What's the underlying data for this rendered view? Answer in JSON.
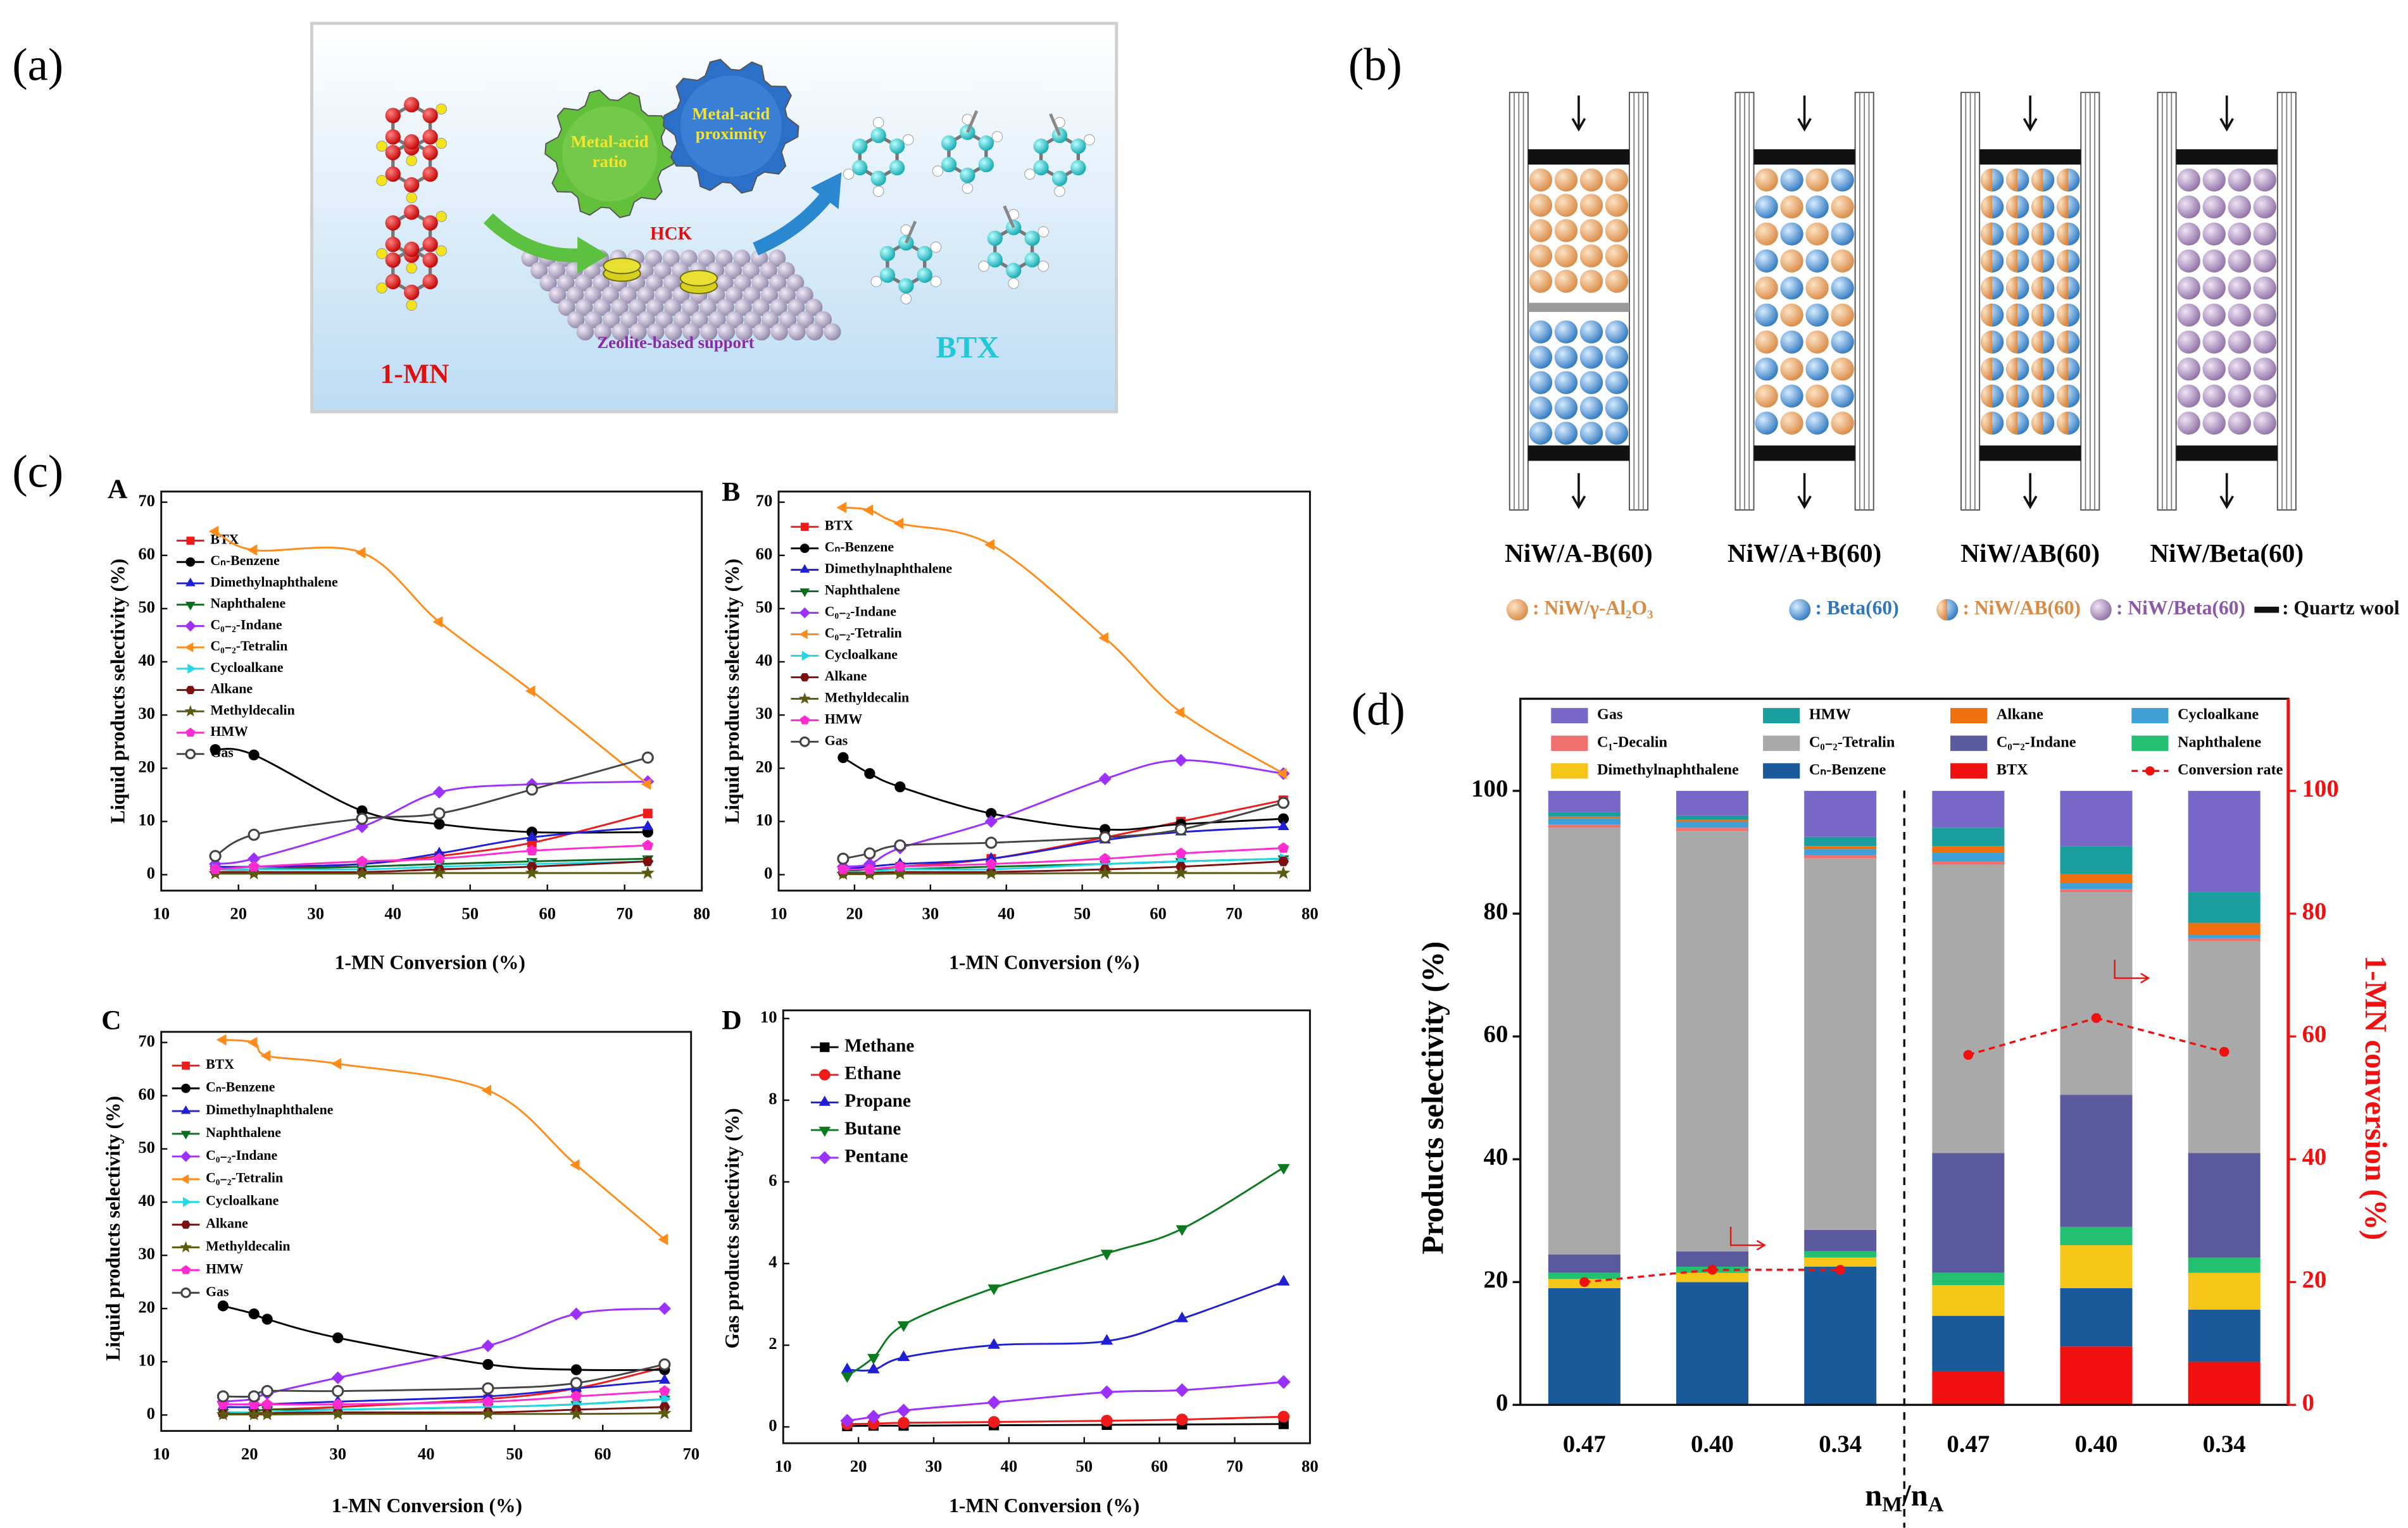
{
  "panel_labels": [
    "(a)",
    "(b)",
    "(c)",
    "(d)"
  ],
  "diagram_a": {
    "reactant": "1-MN",
    "product": "BTX",
    "gear_1": [
      "Metal-acid",
      "ratio"
    ],
    "gear_2": [
      "Metal-acid",
      "proximity"
    ],
    "reaction": "HCK",
    "support": "Zeolite-based support"
  },
  "diagram_b": {
    "columns": [
      "NiW/A-B(60)",
      "NiW/A+B(60)",
      "NiW/AB(60)",
      "NiW/Beta(60)"
    ],
    "legend": [
      ": NiW/γ-Al₂O₃",
      ": Beta(60)",
      ": NiW/AB(60)",
      ": NiW/Beta(60)",
      ": Quartz wool"
    ]
  },
  "chart_data": [
    {
      "type": "line",
      "panel": "A",
      "x_label": "1-MN Conversion (%)",
      "y_label": "Liquid products selectivity (%)",
      "xlim": [
        10,
        80
      ],
      "xticks": [
        10,
        20,
        30,
        40,
        50,
        60,
        70,
        80
      ],
      "ylim": [
        -3,
        72
      ],
      "yticks": [
        0,
        10,
        20,
        30,
        40,
        50,
        60,
        70
      ],
      "x": [
        17,
        22,
        36,
        46,
        58,
        73
      ],
      "series": [
        {
          "name": "BTX",
          "color": "#f01a1a",
          "marker": "square",
          "values": [
            1,
            1,
            2,
            3.5,
            6,
            11.5
          ]
        },
        {
          "name": "Cₙ-Benzene",
          "color": "#000000",
          "marker": "circle",
          "values": [
            23.5,
            22.5,
            12,
            9.5,
            8,
            8
          ]
        },
        {
          "name": "Dimethylnaphthalene",
          "color": "#1f1fd6",
          "marker": "triangle",
          "values": [
            1.5,
            1.5,
            2,
            4,
            7,
            9
          ]
        },
        {
          "name": "Naphthalene",
          "color": "#0b6b1f",
          "marker": "triangle-down",
          "values": [
            1,
            1,
            1.5,
            2,
            2.5,
            3
          ]
        },
        {
          "name": "C₀₋₂-Indane",
          "color": "#9b30ff",
          "marker": "diamond",
          "values": [
            2,
            3,
            9,
            15.5,
            17,
            17.5
          ]
        },
        {
          "name": "C₀₋₂-Tetralin",
          "color": "#ff8c1a",
          "marker": "triangle-left",
          "values": [
            64.5,
            61,
            60.5,
            47.5,
            34.5,
            17
          ]
        },
        {
          "name": "Cycloalkane",
          "color": "#20d8e6",
          "marker": "triangle-right",
          "values": [
            1,
            1,
            1,
            1.5,
            2,
            2.5
          ]
        },
        {
          "name": "Alkane",
          "color": "#7a1010",
          "marker": "hexagon",
          "values": [
            0.5,
            0.5,
            0.5,
            1,
            1.5,
            2.5
          ]
        },
        {
          "name": "Methyldecalin",
          "color": "#5a5a10",
          "marker": "star",
          "values": [
            0.2,
            0.2,
            0.2,
            0.3,
            0.3,
            0.3
          ]
        },
        {
          "name": "HMW",
          "color": "#ff2bd0",
          "marker": "pentagon",
          "values": [
            1,
            1.5,
            2.5,
            3,
            4.5,
            5.5
          ]
        },
        {
          "name": "Gas",
          "color": "#444444",
          "marker": "circle-open",
          "values": [
            3.5,
            7.5,
            10.5,
            11.5,
            16,
            22
          ]
        }
      ]
    },
    {
      "type": "line",
      "panel": "B",
      "x_label": "1-MN Conversion (%)",
      "y_label": "Liquid products selectivity (%)",
      "xlim": [
        10,
        80
      ],
      "xticks": [
        10,
        20,
        30,
        40,
        50,
        60,
        70,
        80
      ],
      "ylim": [
        -3,
        72
      ],
      "yticks": [
        0,
        10,
        20,
        30,
        40,
        50,
        60,
        70
      ],
      "x": [
        18.5,
        22,
        26,
        38,
        53,
        63,
        76.5
      ],
      "series": [
        {
          "name": "BTX",
          "color": "#f01a1a",
          "marker": "square",
          "values": [
            1,
            1,
            1.5,
            3,
            7,
            10,
            14
          ]
        },
        {
          "name": "Cₙ-Benzene",
          "color": "#000000",
          "marker": "circle",
          "values": [
            22,
            19,
            16.5,
            11.5,
            8.5,
            9.5,
            10.5
          ]
        },
        {
          "name": "Dimethylnaphthalene",
          "color": "#1f1fd6",
          "marker": "triangle",
          "values": [
            1,
            1.5,
            2,
            3,
            6.5,
            8,
            9
          ]
        },
        {
          "name": "Naphthalene",
          "color": "#0b6b1f",
          "marker": "triangle-down",
          "values": [
            0.5,
            1,
            1,
            1.5,
            2,
            2.5,
            3
          ]
        },
        {
          "name": "C₀₋₂-Indane",
          "color": "#9b30ff",
          "marker": "diamond",
          "values": [
            1.5,
            2,
            5,
            10,
            18,
            21.5,
            19
          ]
        },
        {
          "name": "C₀₋₂-Tetralin",
          "color": "#ff8c1a",
          "marker": "triangle-left",
          "values": [
            69,
            68.5,
            66,
            62,
            44.5,
            30.5,
            19
          ]
        },
        {
          "name": "Cycloalkane",
          "color": "#20d8e6",
          "marker": "triangle-right",
          "values": [
            0.5,
            0.5,
            1,
            1,
            2,
            2.5,
            3
          ]
        },
        {
          "name": "Alkane",
          "color": "#7a1010",
          "marker": "hexagon",
          "values": [
            0.3,
            0.3,
            0.5,
            0.5,
            1,
            1.5,
            2.5
          ]
        },
        {
          "name": "Methyldecalin",
          "color": "#5a5a10",
          "marker": "star",
          "values": [
            0.1,
            0.1,
            0.2,
            0.2,
            0.3,
            0.3,
            0.3
          ]
        },
        {
          "name": "HMW",
          "color": "#ff2bd0",
          "marker": "pentagon",
          "values": [
            1,
            1,
            1.5,
            2,
            3,
            4,
            5
          ]
        },
        {
          "name": "Gas",
          "color": "#444444",
          "marker": "circle-open",
          "values": [
            3,
            4,
            5.5,
            6,
            7,
            8.5,
            13.5
          ]
        }
      ]
    },
    {
      "type": "line",
      "panel": "C",
      "x_label": "1-MN Conversion (%)",
      "y_label": "Liquid products selectivity (%)",
      "xlim": [
        10,
        70
      ],
      "xticks": [
        10,
        20,
        30,
        40,
        50,
        60,
        70
      ],
      "ylim": [
        -3,
        72
      ],
      "yticks": [
        0,
        10,
        20,
        30,
        40,
        50,
        60,
        70
      ],
      "x": [
        17,
        20.5,
        22,
        30,
        47,
        57,
        67
      ],
      "series": [
        {
          "name": "BTX",
          "color": "#f01a1a",
          "marker": "square",
          "values": [
            0.5,
            0.5,
            1,
            1.5,
            3,
            5,
            9
          ]
        },
        {
          "name": "Cₙ-Benzene",
          "color": "#000000",
          "marker": "circle",
          "values": [
            20.5,
            19,
            18,
            14.5,
            9.5,
            8.5,
            8.5
          ]
        },
        {
          "name": "Dimethylnaphthalene",
          "color": "#1f1fd6",
          "marker": "triangle",
          "values": [
            1.5,
            1.5,
            2,
            2.5,
            3.5,
            5,
            6.5
          ]
        },
        {
          "name": "Naphthalene",
          "color": "#0b6b1f",
          "marker": "triangle-down",
          "values": [
            0.5,
            0.5,
            1,
            1,
            1.5,
            2,
            3
          ]
        },
        {
          "name": "C₀₋₂-Indane",
          "color": "#9b30ff",
          "marker": "diamond",
          "values": [
            2.5,
            3,
            4,
            7,
            13,
            19,
            20
          ]
        },
        {
          "name": "C₀₋₂-Tetralin",
          "color": "#ff8c1a",
          "marker": "triangle-left",
          "values": [
            70.5,
            70,
            67.5,
            66,
            61,
            47,
            33
          ]
        },
        {
          "name": "Cycloalkane",
          "color": "#20d8e6",
          "marker": "triangle-right",
          "values": [
            0.5,
            0.5,
            0.5,
            1,
            1.5,
            2,
            3
          ]
        },
        {
          "name": "Alkane",
          "color": "#7a1010",
          "marker": "hexagon",
          "values": [
            0.2,
            0.2,
            0.3,
            0.5,
            0.5,
            1,
            1.5
          ]
        },
        {
          "name": "Methyldecalin",
          "color": "#5a5a10",
          "marker": "star",
          "values": [
            0.1,
            0.1,
            0.1,
            0.2,
            0.2,
            0.2,
            0.3
          ]
        },
        {
          "name": "HMW",
          "color": "#ff2bd0",
          "marker": "pentagon",
          "values": [
            2,
            2,
            2,
            2,
            2.5,
            3.5,
            4.5
          ]
        },
        {
          "name": "Gas",
          "color": "#444444",
          "marker": "circle-open",
          "values": [
            3.5,
            3.5,
            4.5,
            4.5,
            5,
            6,
            9.5
          ]
        }
      ]
    },
    {
      "type": "line",
      "panel": "D",
      "x_label": "1-MN Conversion (%)",
      "y_label": "Gas products selectivity (%)",
      "xlim": [
        10,
        80
      ],
      "xticks": [
        10,
        20,
        30,
        40,
        50,
        60,
        70,
        80
      ],
      "ylim": [
        -0.4,
        10.2
      ],
      "yticks": [
        0,
        2,
        4,
        6,
        8,
        10
      ],
      "x": [
        18.5,
        22,
        26,
        38,
        53,
        63,
        76.5
      ],
      "series": [
        {
          "name": "Methane",
          "color": "#000000",
          "marker": "square",
          "values": [
            0.02,
            0.03,
            0.03,
            0.04,
            0.05,
            0.06,
            0.07
          ]
        },
        {
          "name": "Ethane",
          "color": "#f01a1a",
          "marker": "circle",
          "values": [
            0.07,
            0.08,
            0.1,
            0.12,
            0.15,
            0.18,
            0.25
          ]
        },
        {
          "name": "Propane",
          "color": "#1f1fd6",
          "marker": "triangle",
          "values": [
            1.4,
            1.4,
            1.7,
            2,
            2.1,
            2.65,
            3.55
          ]
        },
        {
          "name": "Butane",
          "color": "#0b7a1f",
          "marker": "triangle-down",
          "values": [
            1.25,
            1.7,
            2.5,
            3.4,
            4.25,
            4.85,
            6.35
          ]
        },
        {
          "name": "Pentane",
          "color": "#9b30ff",
          "marker": "diamond",
          "values": [
            0.15,
            0.25,
            0.4,
            0.6,
            0.85,
            0.9,
            1.1
          ]
        }
      ]
    },
    {
      "type": "bar",
      "stacked": true,
      "x_label": [
        "n",
        "M",
        "/n",
        "A"
      ],
      "y_label": "Products selectivity (%)",
      "y2_label": "1-MN conversion (%)",
      "categories": [
        "0.47",
        "0.40",
        "0.34",
        "0.47",
        "0.40",
        "0.34"
      ],
      "ylim": [
        0,
        115
      ],
      "yticks": [
        0,
        20,
        40,
        60,
        80,
        100
      ],
      "y2lim": [
        0,
        115
      ],
      "y2ticks": [
        0,
        20,
        40,
        60,
        80,
        100
      ],
      "y2color": "#f01010",
      "series": [
        {
          "name": "BTX",
          "color": "#f01010",
          "values": [
            0,
            0,
            0,
            5.5,
            9.5,
            7
          ]
        },
        {
          "name": "Cₙ-Benzene",
          "color": "#1b5a9a",
          "values": [
            19,
            20,
            22.5,
            9,
            9.5,
            8.5
          ]
        },
        {
          "name": "Dimethylnaphthalene",
          "color": "#f5c518",
          "values": [
            1.5,
            1.5,
            1.5,
            5,
            7,
            6
          ]
        },
        {
          "name": "Naphthalene",
          "color": "#22c070",
          "values": [
            1,
            1,
            1,
            2,
            3,
            2.5
          ]
        },
        {
          "name": "C₀₋₂-Indane",
          "color": "#5c5a9e",
          "values": [
            3,
            2.5,
            3.5,
            19.5,
            21.5,
            17
          ]
        },
        {
          "name": "C₀₋₂-Tetralin",
          "color": "#a9a9a9",
          "values": [
            69.5,
            68.5,
            60.5,
            47,
            33,
            34.5
          ]
        },
        {
          "name": "C₁-Decalin",
          "color": "#f07070",
          "values": [
            0.5,
            0.5,
            0.5,
            0.5,
            0.5,
            0.5
          ]
        },
        {
          "name": "Cycloalkane",
          "color": "#3fa0d8",
          "values": [
            1,
            1,
            1,
            1.5,
            1,
            0.5
          ]
        },
        {
          "name": "Alkane",
          "color": "#f07010",
          "values": [
            0.3,
            0.3,
            0.5,
            1,
            1.5,
            2
          ]
        },
        {
          "name": "HMW",
          "color": "#1a9e9e",
          "values": [
            0.7,
            0.7,
            1.5,
            3,
            4.5,
            5
          ]
        },
        {
          "name": "Gas",
          "color": "#7a68c8",
          "values": [
            3.5,
            4,
            7.5,
            6,
            9,
            16.5
          ]
        },
        {
          "name": "Conversion rate",
          "color": "#f01010",
          "axis": "y2",
          "values": [
            20,
            22,
            22,
            57,
            63,
            57.5
          ]
        }
      ]
    }
  ]
}
